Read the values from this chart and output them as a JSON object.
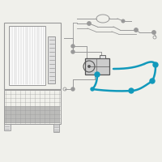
{
  "background_color": "#f0f0eb",
  "line_gray": "#999999",
  "line_dark": "#555555",
  "line_light": "#aaaaaa",
  "blue": "#1199bb",
  "blue_dark": "#0077aa",
  "white": "#ffffff",
  "fill_gray": "#cccccc",
  "fill_light": "#e0e0e0",
  "fill_dark": "#888888",
  "fig_w": 2.0,
  "fig_h": 2.0,
  "dpi": 100
}
